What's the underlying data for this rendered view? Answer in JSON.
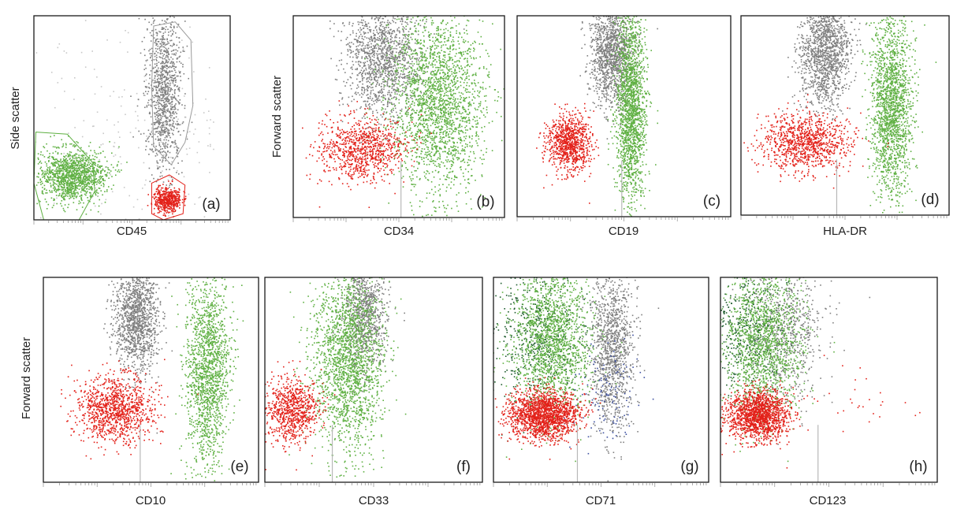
{
  "chart_data": [
    {
      "panel": "(a)",
      "type": "scatter",
      "xlabel": "CD45",
      "ylabel": "Side scatter",
      "scale": "log",
      "series": [
        {
          "name": "",
          "color": "#7f7f7f",
          "cx": 0.66,
          "cy": 0.36,
          "sx": 0.045,
          "sy": 0.2,
          "n": 1100
        },
        {
          "name": "",
          "color": "#5fb043",
          "cx": 0.19,
          "cy": 0.78,
          "sx": 0.085,
          "sy": 0.065,
          "n": 1300
        },
        {
          "name": "",
          "color": "#e32119",
          "cx": 0.68,
          "cy": 0.9,
          "sx": 0.035,
          "sy": 0.03,
          "n": 500
        },
        {
          "name": "",
          "color": "#c8c8c8",
          "cx": 0.55,
          "cy": 0.6,
          "sx": 0.3,
          "sy": 0.3,
          "n": 250
        }
      ],
      "gates": [
        {
          "name": "",
          "color": "#9a9a9a",
          "points": [
            [
              0.61,
              0.05
            ],
            [
              0.72,
              0.03
            ],
            [
              0.8,
              0.12
            ],
            [
              0.81,
              0.44
            ],
            [
              0.77,
              0.62
            ],
            [
              0.7,
              0.73
            ],
            [
              0.61,
              0.64
            ],
            [
              0.6,
              0.35
            ]
          ]
        },
        {
          "name": "",
          "color": "#5fb043",
          "points": [
            [
              0.01,
              0.57
            ],
            [
              0.17,
              0.58
            ],
            [
              0.3,
              0.72
            ],
            [
              0.31,
              0.86
            ],
            [
              0.23,
              1.0
            ],
            [
              0.05,
              1.0
            ],
            [
              0.0,
              0.82
            ]
          ]
        },
        {
          "name": "",
          "color": "#e32119",
          "points": [
            [
              0.6,
              0.82
            ],
            [
              0.69,
              0.78
            ],
            [
              0.77,
              0.83
            ],
            [
              0.76,
              0.97
            ],
            [
              0.66,
              1.0
            ],
            [
              0.6,
              0.97
            ]
          ]
        }
      ]
    },
    {
      "panel": "(b)",
      "type": "scatter",
      "xlabel": "CD34",
      "ylabel": "Forward scatter",
      "scale": "log",
      "series": [
        {
          "name": "",
          "color": "#7f7f7f",
          "cx": 0.42,
          "cy": 0.2,
          "sx": 0.09,
          "sy": 0.15,
          "n": 1400
        },
        {
          "name": "",
          "color": "#5fb043",
          "cx": 0.68,
          "cy": 0.42,
          "sx": 0.11,
          "sy": 0.22,
          "n": 2200
        },
        {
          "name": "",
          "color": "#e32119",
          "cx": 0.32,
          "cy": 0.66,
          "sx": 0.1,
          "sy": 0.08,
          "n": 900
        }
      ],
      "divider_x": 0.51
    },
    {
      "panel": "(c)",
      "type": "scatter",
      "xlabel": "CD19",
      "ylabel": "",
      "scale": "log",
      "series": [
        {
          "name": "",
          "color": "#7f7f7f",
          "cx": 0.44,
          "cy": 0.18,
          "sx": 0.05,
          "sy": 0.13,
          "n": 1300
        },
        {
          "name": "",
          "color": "#5fb043",
          "cx": 0.53,
          "cy": 0.45,
          "sx": 0.035,
          "sy": 0.24,
          "n": 1800
        },
        {
          "name": "",
          "color": "#e32119",
          "cx": 0.24,
          "cy": 0.63,
          "sx": 0.05,
          "sy": 0.07,
          "n": 900
        }
      ],
      "divider_x": 0.49
    },
    {
      "panel": "(d)",
      "type": "scatter",
      "xlabel": "HLA-DR",
      "ylabel": "",
      "scale": "log",
      "series": [
        {
          "name": "",
          "color": "#7f7f7f",
          "cx": 0.4,
          "cy": 0.18,
          "sx": 0.06,
          "sy": 0.14,
          "n": 1400
        },
        {
          "name": "",
          "color": "#5fb043",
          "cx": 0.72,
          "cy": 0.44,
          "sx": 0.05,
          "sy": 0.23,
          "n": 1800
        },
        {
          "name": "",
          "color": "#e32119",
          "cx": 0.31,
          "cy": 0.63,
          "sx": 0.11,
          "sy": 0.07,
          "n": 1000
        }
      ],
      "divider_x": 0.46
    },
    {
      "panel": "(e)",
      "type": "scatter",
      "xlabel": "CD10",
      "ylabel": "Forward scatter",
      "scale": "log",
      "series": [
        {
          "name": "",
          "color": "#7f7f7f",
          "cx": 0.43,
          "cy": 0.2,
          "sx": 0.05,
          "sy": 0.13,
          "n": 1300
        },
        {
          "name": "",
          "color": "#5fb043",
          "cx": 0.76,
          "cy": 0.45,
          "sx": 0.05,
          "sy": 0.24,
          "n": 1600
        },
        {
          "name": "",
          "color": "#e32119",
          "cx": 0.33,
          "cy": 0.64,
          "sx": 0.09,
          "sy": 0.08,
          "n": 1100
        }
      ],
      "divider_x": 0.45
    },
    {
      "panel": "(f)",
      "type": "scatter",
      "xlabel": "CD33",
      "ylabel": "",
      "scale": "log",
      "series": [
        {
          "name": "",
          "color": "#7f7f7f",
          "cx": 0.46,
          "cy": 0.16,
          "sx": 0.05,
          "sy": 0.14,
          "n": 900
        },
        {
          "name": "",
          "color": "#5fb043",
          "cx": 0.38,
          "cy": 0.4,
          "sx": 0.08,
          "sy": 0.22,
          "n": 2000
        },
        {
          "name": "",
          "color": "#e32119",
          "cx": 0.12,
          "cy": 0.65,
          "sx": 0.06,
          "sy": 0.08,
          "n": 800
        }
      ],
      "divider_x": 0.31
    },
    {
      "panel": "(g)",
      "type": "scatter",
      "xlabel": "CD71",
      "ylabel": "",
      "scale": "log",
      "series": [
        {
          "name": "",
          "color": "#7f7f7f",
          "cx": 0.55,
          "cy": 0.33,
          "sx": 0.05,
          "sy": 0.2,
          "n": 1200
        },
        {
          "name": "",
          "color": "#1f5d2e",
          "cx": 0.2,
          "cy": 0.28,
          "sx": 0.11,
          "sy": 0.17,
          "n": 500
        },
        {
          "name": "",
          "color": "#5fb043",
          "cx": 0.27,
          "cy": 0.3,
          "sx": 0.09,
          "sy": 0.18,
          "n": 1700
        },
        {
          "name": "",
          "color": "#3c4fa0",
          "cx": 0.52,
          "cy": 0.55,
          "sx": 0.08,
          "sy": 0.12,
          "n": 120
        },
        {
          "name": "",
          "color": "#e32119",
          "cx": 0.23,
          "cy": 0.67,
          "sx": 0.08,
          "sy": 0.06,
          "n": 1700
        }
      ],
      "divider_x": 0.39
    },
    {
      "panel": "(h)",
      "type": "scatter",
      "xlabel": "CD123",
      "ylabel": "",
      "scale": "log",
      "series": [
        {
          "name": "",
          "color": "#7f7f7f",
          "cx": 0.3,
          "cy": 0.25,
          "sx": 0.09,
          "sy": 0.17,
          "n": 700
        },
        {
          "name": "",
          "color": "#1f5d2e",
          "cx": 0.12,
          "cy": 0.25,
          "sx": 0.08,
          "sy": 0.16,
          "n": 400
        },
        {
          "name": "",
          "color": "#5fb043",
          "cx": 0.2,
          "cy": 0.3,
          "sx": 0.09,
          "sy": 0.18,
          "n": 1500
        },
        {
          "name": "",
          "color": "#e32119",
          "cx": 0.17,
          "cy": 0.67,
          "sx": 0.07,
          "sy": 0.06,
          "n": 1500
        },
        {
          "name": "",
          "color": "#e32119",
          "cx": 0.6,
          "cy": 0.55,
          "sx": 0.15,
          "sy": 0.1,
          "n": 30
        }
      ],
      "divider_x": 0.45
    }
  ]
}
